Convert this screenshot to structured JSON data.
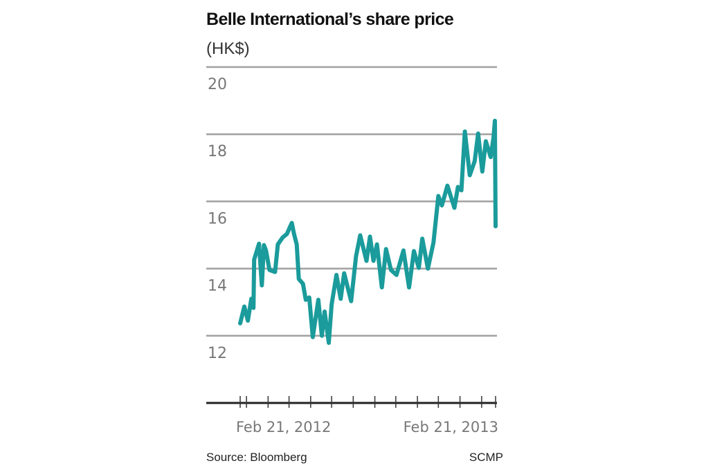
{
  "chart_data": {
    "type": "line",
    "title": "Belle International’s share price",
    "subtitle": "(HK$)",
    "xlabel": "",
    "ylabel": "",
    "ylim": [
      10,
      20
    ],
    "yticks": [
      12,
      14,
      16,
      18,
      20
    ],
    "ytick_labels": [
      "12",
      "14",
      "16",
      "18",
      "20"
    ],
    "grid": "horizontal",
    "xlim": [
      "2012-02-21",
      "2013-02-21"
    ],
    "xtick_labels": [
      {
        "date": "2012-02-21",
        "label": "Feb 21, 2012"
      },
      {
        "date": "2013-02-21",
        "label": "Feb 21, 2013"
      }
    ],
    "minor_ticks": [
      "2012-02-21",
      "2012-03-01",
      "2012-04-01",
      "2012-05-01",
      "2012-06-01",
      "2012-07-01",
      "2012-08-01",
      "2012-09-01",
      "2012-10-01",
      "2012-11-01",
      "2012-12-01",
      "2013-01-01",
      "2013-02-01",
      "2013-02-21"
    ],
    "line_color": "#1b9b9b",
    "series": [
      {
        "x": [
          "2012-02-21",
          "2012-02-27",
          "2012-03-03",
          "2012-03-08",
          "2012-03-11",
          "2012-03-12",
          "2012-03-19",
          "2012-03-23",
          "2012-03-26",
          "2012-03-29",
          "2012-04-03",
          "2012-04-11",
          "2012-04-15",
          "2012-04-22",
          "2012-04-28",
          "2012-05-05",
          "2012-05-08",
          "2012-05-12",
          "2012-05-15",
          "2012-05-21",
          "2012-05-25",
          "2012-05-30",
          "2012-06-04",
          "2012-06-12",
          "2012-06-17",
          "2012-06-21",
          "2012-06-27",
          "2012-07-01",
          "2012-07-08",
          "2012-07-14",
          "2012-07-19",
          "2012-07-29",
          "2012-08-05",
          "2012-08-11",
          "2012-08-20",
          "2012-08-25",
          "2012-08-30",
          "2012-09-04",
          "2012-09-11",
          "2012-09-17",
          "2012-09-24",
          "2012-10-02",
          "2012-10-12",
          "2012-10-20",
          "2012-10-27",
          "2012-11-03",
          "2012-11-08",
          "2012-11-16",
          "2012-11-24",
          "2012-12-01",
          "2012-12-06",
          "2012-12-14",
          "2012-12-24",
          "2012-12-29",
          "2013-01-03",
          "2013-01-08",
          "2013-01-15",
          "2013-01-22",
          "2013-01-27",
          "2013-02-02",
          "2013-02-07",
          "2013-02-14",
          "2013-02-18",
          "2013-02-20",
          "2013-02-21"
        ],
        "values": [
          12.37,
          12.87,
          12.45,
          13.1,
          12.83,
          14.27,
          14.74,
          13.5,
          14.7,
          14.54,
          13.96,
          13.9,
          14.72,
          14.93,
          15.03,
          15.36,
          15.05,
          14.72,
          13.69,
          13.55,
          13.07,
          13.14,
          11.96,
          13.07,
          12.0,
          12.72,
          11.79,
          12.93,
          13.81,
          13.1,
          13.86,
          13.03,
          14.37,
          14.99,
          14.23,
          14.95,
          14.23,
          14.72,
          13.44,
          14.58,
          13.96,
          13.81,
          14.54,
          13.44,
          14.52,
          14.02,
          14.89,
          14.0,
          14.78,
          16.16,
          15.88,
          16.47,
          15.81,
          16.43,
          16.33,
          18.08,
          16.78,
          17.2,
          18.02,
          16.89,
          17.79,
          17.32,
          17.9,
          18.4,
          15.26
        ]
      }
    ]
  },
  "footer": {
    "source": "Source: Bloomberg",
    "credit": "SCMP"
  }
}
